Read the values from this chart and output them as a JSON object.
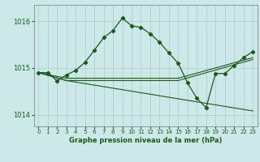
{
  "title": "Graphe pression niveau de la mer (hPa)",
  "bg_color": "#cde8e8",
  "grid_color": "#aacccc",
  "line_color": "#1a5c1a",
  "xlim": [
    -0.5,
    23.5
  ],
  "ylim": [
    1013.75,
    1016.35
  ],
  "yticks": [
    1014,
    1015,
    1016
  ],
  "xticks": [
    0,
    1,
    2,
    3,
    4,
    5,
    6,
    7,
    8,
    9,
    10,
    11,
    12,
    13,
    14,
    15,
    16,
    17,
    18,
    19,
    20,
    21,
    22,
    23
  ],
  "main_x": [
    0,
    1,
    2,
    3,
    4,
    5,
    6,
    7,
    8,
    9,
    10,
    11,
    12,
    13,
    14,
    15,
    16,
    17,
    18,
    19,
    20,
    21,
    22,
    23
  ],
  "main_y": [
    1014.9,
    1014.9,
    1014.72,
    1014.85,
    1014.95,
    1015.12,
    1015.38,
    1015.65,
    1015.8,
    1016.07,
    1015.9,
    1015.87,
    1015.73,
    1015.55,
    1015.32,
    1015.1,
    1014.68,
    1014.35,
    1014.15,
    1014.88,
    1014.88,
    1015.05,
    1015.22,
    1015.35
  ],
  "line2_x": [
    0,
    3,
    23
  ],
  "line2_y": [
    1014.9,
    1014.73,
    1014.08
  ],
  "line3_x": [
    0,
    3,
    15,
    23
  ],
  "line3_y": [
    1014.9,
    1014.73,
    1014.73,
    1015.18
  ],
  "line4_x": [
    0,
    3,
    15,
    23
  ],
  "line4_y": [
    1014.9,
    1014.78,
    1014.78,
    1015.22
  ],
  "xlabel_size": 6.0,
  "ytick_size": 6.0,
  "xtick_size": 5.0
}
